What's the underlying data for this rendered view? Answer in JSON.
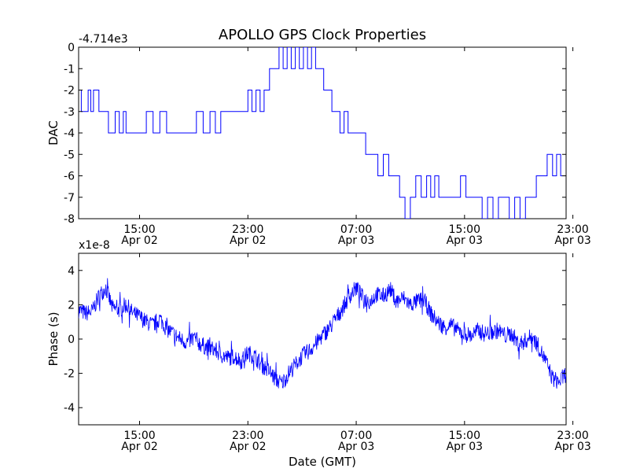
{
  "chart_data": {
    "type": "line",
    "title": "APOLLO GPS Clock Properties",
    "colors": {
      "series": "#0000ff",
      "axes": "#000000",
      "background": "#ffffff"
    },
    "shared_x": {
      "unit": "hours since Apr 02 00:00 GMT",
      "range": [
        10.5,
        46.5
      ],
      "ticks": [
        {
          "value": 15,
          "time": "15:00",
          "date": "Apr 02"
        },
        {
          "value": 23,
          "time": "23:00",
          "date": "Apr 02"
        },
        {
          "value": 31,
          "time": "07:00",
          "date": "Apr 03"
        },
        {
          "value": 39,
          "time": "15:00",
          "date": "Apr 03"
        },
        {
          "value": 47,
          "time": "23:00",
          "date": "Apr 03"
        }
      ]
    },
    "panels": [
      {
        "name": "dac",
        "ylabel": "DAC",
        "offset_text": "-4.714e3",
        "ylim": [
          -8,
          0
        ],
        "yticks": [
          0,
          -1,
          -2,
          -3,
          -4,
          -5,
          -6,
          -7,
          -8
        ],
        "series": [
          {
            "name": "DAC",
            "step": true,
            "x": [
              10.5,
              10.7,
              11.2,
              11.4,
              11.6,
              12.0,
              12.7,
              13.2,
              13.5,
              13.8,
              14.0,
              14.4,
              15.5,
              16.0,
              16.5,
              17.0,
              17.5,
              18.0,
              18.6,
              19.2,
              19.7,
              20.2,
              20.6,
              21.0,
              21.5,
              22.0,
              22.5,
              23.0,
              23.3,
              23.6,
              23.9,
              24.2,
              24.6,
              25.0,
              25.3,
              25.6,
              25.9,
              26.2,
              26.5,
              26.8,
              27.1,
              27.4,
              27.7,
              28.0,
              28.3,
              28.6,
              28.9,
              29.2,
              29.5,
              29.8,
              30.1,
              30.4,
              30.7,
              31.0,
              31.3,
              31.7,
              32.0,
              32.3,
              32.6,
              33.0,
              33.4,
              33.8,
              34.2,
              34.6,
              35.0,
              35.4,
              35.8,
              36.2,
              36.5,
              36.8,
              37.1,
              37.5,
              37.9,
              38.3,
              38.7,
              39.1,
              39.5,
              39.9,
              40.3,
              40.7,
              41.1,
              41.5,
              41.9,
              42.3,
              42.7,
              43.1,
              43.5,
              43.9,
              44.3,
              44.7,
              45.1,
              45.5,
              45.8,
              46.1,
              46.5
            ],
            "y": [
              -2,
              -3,
              -2,
              -3,
              -2,
              -3,
              -4,
              -3,
              -4,
              -3,
              -4,
              -4,
              -3,
              -4,
              -3,
              -4,
              -4,
              -4,
              -4,
              -3,
              -4,
              -3,
              -4,
              -3,
              -3,
              -3,
              -3,
              -2,
              -3,
              -2,
              -3,
              -2,
              -1,
              -1,
              0,
              -1,
              0,
              -1,
              0,
              -1,
              0,
              -1,
              0,
              -1,
              -1,
              -2,
              -2,
              -3,
              -3,
              -4,
              -3,
              -4,
              -4,
              -4,
              -4,
              -5,
              -5,
              -5,
              -6,
              -5,
              -6,
              -6,
              -7,
              -8,
              -7,
              -6,
              -7,
              -6,
              -7,
              -6,
              -7,
              -7,
              -7,
              -7,
              -6,
              -7,
              -7,
              -7,
              -8,
              -7,
              -8,
              -7,
              -7,
              -8,
              -7,
              -8,
              -7,
              -7,
              -6,
              -6,
              -5,
              -6,
              -5,
              -6,
              -6
            ]
          }
        ]
      },
      {
        "name": "phase",
        "ylabel": "Phase (s)",
        "xlabel": "Date (GMT)",
        "offset_text": "x1e-8",
        "ylim": [
          -5,
          5
        ],
        "yticks": [
          4,
          2,
          0,
          -2,
          -4
        ],
        "noise_amplitude": 0.5,
        "series": [
          {
            "name": "Phase",
            "x": [
              10.5,
              11.0,
              11.5,
              12.0,
              12.5,
              13.0,
              13.5,
              14.0,
              14.5,
              15.0,
              15.5,
              16.0,
              16.5,
              17.0,
              17.5,
              18.0,
              18.5,
              19.0,
              19.5,
              20.0,
              20.5,
              21.0,
              21.5,
              22.0,
              22.5,
              23.0,
              23.5,
              24.0,
              24.5,
              25.0,
              25.5,
              26.0,
              26.5,
              27.0,
              27.5,
              28.0,
              28.5,
              29.0,
              29.5,
              30.0,
              30.5,
              31.0,
              31.5,
              32.0,
              32.5,
              33.0,
              33.5,
              34.0,
              34.5,
              35.0,
              35.5,
              36.0,
              36.5,
              37.0,
              37.5,
              38.0,
              38.5,
              39.0,
              39.5,
              40.0,
              40.5,
              41.0,
              41.5,
              42.0,
              42.5,
              43.0,
              43.5,
              44.0,
              44.5,
              45.0,
              45.5,
              46.0,
              46.5
            ],
            "y": [
              1.7,
              1.5,
              1.6,
              2.5,
              3.0,
              1.8,
              1.7,
              2.0,
              1.5,
              1.3,
              1.0,
              0.8,
              1.2,
              0.6,
              0.3,
              0.0,
              -0.2,
              0.1,
              -0.3,
              -0.5,
              -0.6,
              -0.9,
              -1.1,
              -1.0,
              -1.3,
              -0.8,
              -1.0,
              -1.5,
              -1.8,
              -2.3,
              -2.6,
              -2.0,
              -1.5,
              -1.0,
              -0.7,
              -0.3,
              0.2,
              0.6,
              1.2,
              1.8,
              2.5,
              3.0,
              2.4,
              2.2,
              2.6,
              2.5,
              2.9,
              2.2,
              2.4,
              2.0,
              2.2,
              2.3,
              1.5,
              1.0,
              0.7,
              0.8,
              0.5,
              0.3,
              0.2,
              0.5,
              0.3,
              0.4,
              0.5,
              0.2,
              0.3,
              -0.3,
              -0.1,
              0.2,
              -0.5,
              -1.3,
              -2.3,
              -2.5,
              -2.0
            ]
          }
        ]
      }
    ]
  }
}
